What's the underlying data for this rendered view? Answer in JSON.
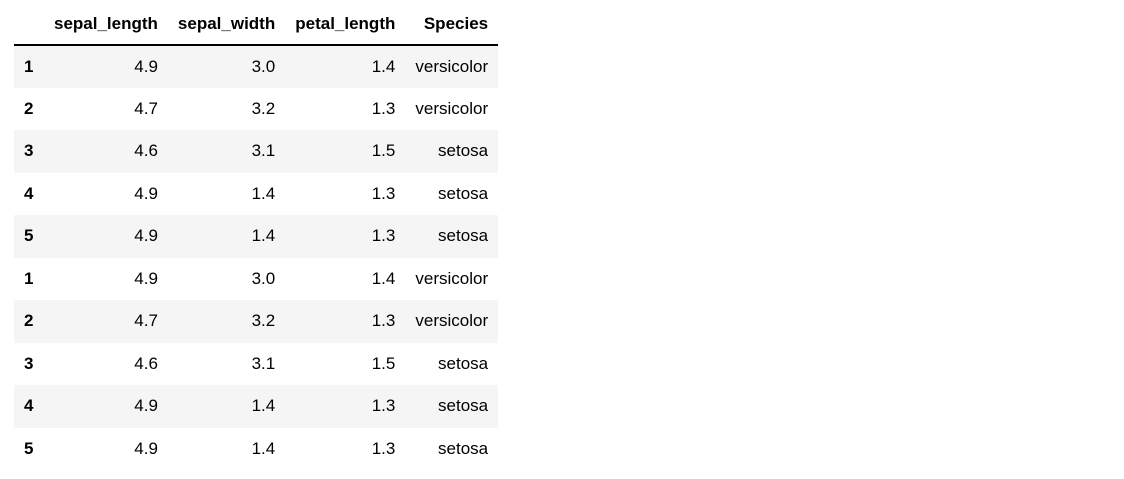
{
  "table": {
    "columns": [
      "sepal_length",
      "sepal_width",
      "petal_length",
      "Species"
    ],
    "rows": [
      {
        "index": "1",
        "sepal_length": "4.9",
        "sepal_width": "3.0",
        "petal_length": "1.4",
        "species": "versicolor"
      },
      {
        "index": "2",
        "sepal_length": "4.7",
        "sepal_width": "3.2",
        "petal_length": "1.3",
        "species": "versicolor"
      },
      {
        "index": "3",
        "sepal_length": "4.6",
        "sepal_width": "3.1",
        "petal_length": "1.5",
        "species": "setosa"
      },
      {
        "index": "4",
        "sepal_length": "4.9",
        "sepal_width": "1.4",
        "petal_length": "1.3",
        "species": "setosa"
      },
      {
        "index": "5",
        "sepal_length": "4.9",
        "sepal_width": "1.4",
        "petal_length": "1.3",
        "species": "setosa"
      },
      {
        "index": "1",
        "sepal_length": "4.9",
        "sepal_width": "3.0",
        "petal_length": "1.4",
        "species": "versicolor"
      },
      {
        "index": "2",
        "sepal_length": "4.7",
        "sepal_width": "3.2",
        "petal_length": "1.3",
        "species": "versicolor"
      },
      {
        "index": "3",
        "sepal_length": "4.6",
        "sepal_width": "3.1",
        "petal_length": "1.5",
        "species": "setosa"
      },
      {
        "index": "4",
        "sepal_length": "4.9",
        "sepal_width": "1.4",
        "petal_length": "1.3",
        "species": "setosa"
      },
      {
        "index": "5",
        "sepal_length": "4.9",
        "sepal_width": "1.4",
        "petal_length": "1.3",
        "species": "setosa"
      }
    ],
    "colors": {
      "stripe": "#f5f5f5",
      "header_rule": "#000000",
      "text": "#000000"
    }
  }
}
